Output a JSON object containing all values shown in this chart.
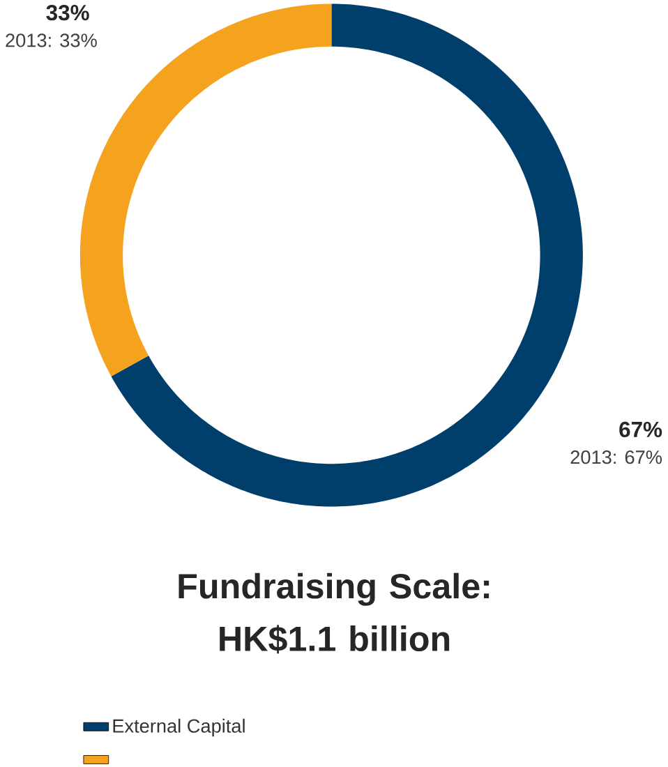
{
  "chart_data": {
    "type": "donut",
    "title": "Fundraising Scale:\nHK$1.1 billion",
    "categories": [
      "External Capital",
      null
    ],
    "values": [
      67,
      33
    ],
    "colors": [
      "#003f6b",
      "#f5a31f"
    ],
    "annotations": [
      "67%",
      "2013: 67%",
      "33%",
      "2013: 33%"
    ],
    "legend": "bottom left"
  }
}
